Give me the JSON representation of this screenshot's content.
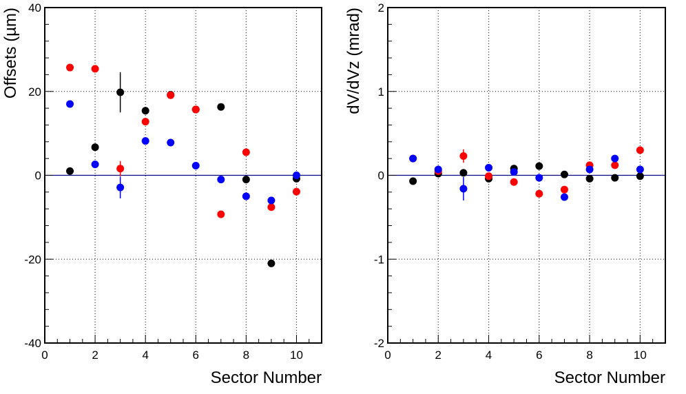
{
  "chart_data": [
    {
      "type": "scatter",
      "title": "",
      "xlabel": "Sector Number",
      "ylabel": "Offsets (µm)",
      "xlim": [
        0,
        11
      ],
      "ylim": [
        -40,
        40
      ],
      "xticks": [
        0,
        2,
        4,
        6,
        8,
        10
      ],
      "yticks": [
        -40,
        -20,
        0,
        20,
        40
      ],
      "xtick_labels": [
        "0",
        "2",
        "4",
        "6",
        "8",
        "10"
      ],
      "ytick_labels": [
        "-40",
        "-20",
        "0",
        "20",
        "40"
      ],
      "grid": true,
      "reference_line": 0,
      "series": [
        {
          "color": "#000000",
          "x": [
            1,
            2,
            3,
            4,
            5,
            6,
            7,
            8,
            9,
            10
          ],
          "y": [
            1,
            6.7,
            19.8,
            15.4,
            19.2,
            15.7,
            16.3,
            -1,
            -21,
            -0.8
          ],
          "yerr": [
            0.5,
            0.5,
            4.8,
            0.5,
            0.5,
            0.5,
            0.5,
            0.5,
            0.5,
            0.5
          ]
        },
        {
          "color": "#ff0000",
          "x": [
            1,
            2,
            3,
            4,
            5,
            6,
            7,
            8,
            9,
            10
          ],
          "y": [
            25.7,
            25.4,
            1.6,
            12.8,
            19.1,
            15.7,
            -9.3,
            5.5,
            -7.6,
            -3.9
          ],
          "yerr": [
            0.5,
            0.5,
            1.8,
            0.5,
            0.5,
            0.5,
            0.5,
            0.5,
            0.5,
            0.5
          ]
        },
        {
          "color": "#0000ff",
          "x": [
            1,
            2,
            3,
            4,
            5,
            6,
            7,
            8,
            9,
            10
          ],
          "y": [
            17,
            2.6,
            -2.9,
            8.2,
            7.8,
            2.3,
            -1,
            -5,
            -6,
            0
          ],
          "yerr": [
            0.5,
            0.5,
            2.6,
            0.5,
            0.5,
            0.5,
            0.5,
            0.5,
            0.5,
            0.5
          ]
        }
      ]
    },
    {
      "type": "scatter",
      "title": "",
      "xlabel": "Sector Number",
      "ylabel": "dV/dVz (mrad)",
      "xlim": [
        0,
        11
      ],
      "ylim": [
        -2,
        2
      ],
      "xticks": [
        0,
        2,
        4,
        6,
        8,
        10
      ],
      "yticks": [
        -2,
        -1,
        0,
        1,
        2
      ],
      "xtick_labels": [
        "0",
        "2",
        "4",
        "6",
        "8",
        "10"
      ],
      "ytick_labels": [
        "-2",
        "-1",
        "0",
        "1",
        "2"
      ],
      "grid": true,
      "reference_line": 0,
      "series": [
        {
          "color": "#000000",
          "x": [
            1,
            2,
            3,
            4,
            5,
            6,
            7,
            8,
            9,
            10
          ],
          "y": [
            -0.07,
            0.02,
            0.03,
            -0.04,
            0.08,
            0.11,
            0.01,
            -0.04,
            -0.03,
            -0.01
          ],
          "yerr": [
            0.02,
            0.02,
            0.02,
            0.02,
            0.02,
            0.02,
            0.02,
            0.02,
            0.02,
            0.02
          ]
        },
        {
          "color": "#ff0000",
          "x": [
            1,
            2,
            3,
            4,
            5,
            6,
            7,
            8,
            9,
            10
          ],
          "y": [
            0.2,
            0.05,
            0.23,
            -0.01,
            -0.08,
            -0.22,
            -0.17,
            0.12,
            0.12,
            0.3
          ],
          "yerr": [
            0.02,
            0.02,
            0.08,
            0.02,
            0.02,
            0.02,
            0.02,
            0.02,
            0.02,
            0.02
          ]
        },
        {
          "color": "#0000ff",
          "x": [
            1,
            2,
            3,
            4,
            5,
            6,
            7,
            8,
            9,
            10
          ],
          "y": [
            0.2,
            0.07,
            -0.16,
            0.09,
            0.04,
            -0.03,
            -0.26,
            0.07,
            0.2,
            0.07
          ],
          "yerr": [
            0.02,
            0.02,
            0.14,
            0.02,
            0.02,
            0.02,
            0.02,
            0.02,
            0.02,
            0.02
          ]
        }
      ]
    }
  ]
}
